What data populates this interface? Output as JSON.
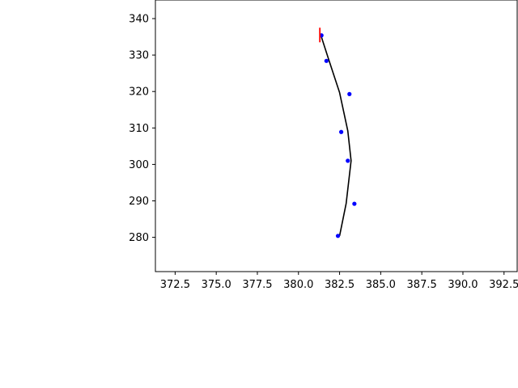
{
  "chart_data": {
    "type": "line",
    "title": "",
    "xlabel": "",
    "ylabel": "",
    "xlim": [
      371.3,
      393.3
    ],
    "ylim": [
      270.6,
      345.1
    ],
    "xticks": [
      372.5,
      375.0,
      377.5,
      380.0,
      382.5,
      385.0,
      387.5,
      390.0,
      392.5
    ],
    "xtick_labels": [
      "372.5",
      "375.0",
      "377.5",
      "380.0",
      "382.5",
      "385.0",
      "387.5",
      "390.0",
      "392.5"
    ],
    "yticks": [
      280,
      290,
      300,
      310,
      320,
      330,
      340
    ],
    "ytick_labels": [
      "280",
      "290",
      "300",
      "310",
      "320",
      "330",
      "340"
    ],
    "grid": false,
    "series": [
      {
        "kind": "line",
        "color": "#000000",
        "x": [
          382.5,
          382.9,
          383.2,
          383.0,
          382.5,
          381.8,
          381.4
        ],
        "y": [
          280.4,
          289.3,
          301.0,
          309.2,
          319.7,
          329.3,
          334.9
        ]
      },
      {
        "kind": "scatter",
        "color": "#0000ff",
        "x": [
          382.4,
          383.4,
          383.0,
          382.6,
          383.1,
          381.7,
          381.4
        ],
        "y": [
          280.4,
          289.2,
          301.0,
          308.9,
          319.3,
          328.4,
          335.4
        ]
      },
      {
        "kind": "marker",
        "color": "#ff0000",
        "x": [
          381.3,
          381.3
        ],
        "y": [
          333.5,
          337.5
        ]
      }
    ]
  }
}
